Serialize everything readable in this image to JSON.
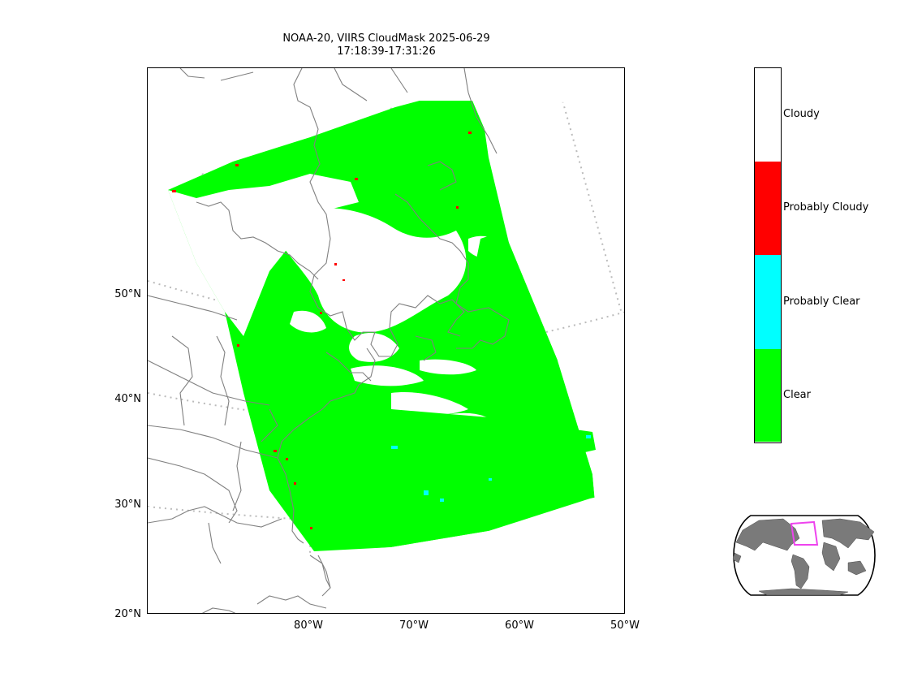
{
  "title": {
    "line1": "NOAA-20, VIIRS CloudMask 2025-06-29",
    "line2": "17:18:39-17:31:26"
  },
  "map": {
    "lat_labels": [
      "50°N",
      "40°N",
      "30°N",
      "20°N"
    ],
    "lon_labels": [
      "80°W",
      "70°W",
      "60°W",
      "50°W"
    ],
    "land_color": "#ffffff",
    "coastline_color": "#808080",
    "graticule_color": "#bbbbbb"
  },
  "legend": {
    "classes": [
      {
        "label": "Cloudy",
        "color": "#ffffff"
      },
      {
        "label": "Probably Cloudy",
        "color": "#ff0000"
      },
      {
        "label": "Probably Clear",
        "color": "#00ffff"
      },
      {
        "label": "Clear",
        "color": "#00ff00"
      }
    ]
  },
  "inset": {
    "ocean_color": "#ffffff",
    "land_color": "#7a7a7a",
    "highlight_color": "#ee44ee"
  }
}
